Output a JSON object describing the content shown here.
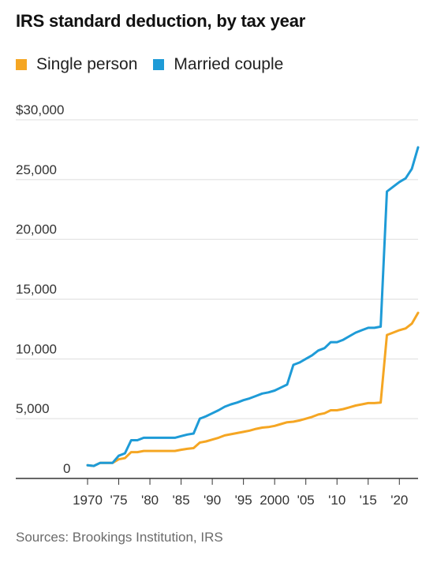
{
  "title": "IRS standard deduction, by tax year",
  "source": "Sources: Brookings Institution, IRS",
  "colors": {
    "single": "#f5a623",
    "married": "#1e9bd7",
    "grid": "#dddddd",
    "axis": "#333333"
  },
  "legend": [
    {
      "label": "Single person",
      "color": "#f5a623"
    },
    {
      "label": "Married couple",
      "color": "#1e9bd7"
    }
  ],
  "chart_data": {
    "type": "line",
    "title": "IRS standard deduction, by tax year",
    "xlabel": "",
    "ylabel": "",
    "xlim": [
      1970,
      2023
    ],
    "ylim": [
      0,
      30000
    ],
    "grid": true,
    "legend_position": "top-left",
    "x_ticks": [
      1970,
      1975,
      1980,
      1985,
      1990,
      1995,
      2000,
      2005,
      2010,
      2015,
      2020
    ],
    "x_tick_labels": [
      "1970",
      "'75",
      "'80",
      "'85",
      "'90",
      "'95",
      "2000",
      "'05",
      "'10",
      "'15",
      "'20"
    ],
    "y_ticks": [
      0,
      5000,
      10000,
      15000,
      20000,
      25000,
      30000
    ],
    "y_tick_labels": [
      "0",
      "5,000",
      "10,000",
      "15,000",
      "20,000",
      "25,000",
      "$30,000"
    ],
    "series": [
      {
        "name": "Single person",
        "color": "#f5a623",
        "x": [
          1970,
          1971,
          1972,
          1973,
          1974,
          1975,
          1976,
          1977,
          1978,
          1979,
          1980,
          1981,
          1982,
          1983,
          1984,
          1985,
          1986,
          1987,
          1988,
          1989,
          1990,
          1991,
          1992,
          1993,
          1994,
          1995,
          1996,
          1997,
          1998,
          1999,
          2000,
          2001,
          2002,
          2003,
          2004,
          2005,
          2006,
          2007,
          2008,
          2009,
          2010,
          2011,
          2012,
          2013,
          2014,
          2015,
          2016,
          2017,
          2018,
          2019,
          2020,
          2021,
          2022,
          2023
        ],
        "values": [
          1100,
          1050,
          1300,
          1300,
          1300,
          1600,
          1700,
          2200,
          2200,
          2300,
          2300,
          2300,
          2300,
          2300,
          2300,
          2400,
          2480,
          2540,
          3000,
          3100,
          3250,
          3400,
          3600,
          3700,
          3800,
          3900,
          4000,
          4150,
          4250,
          4300,
          4400,
          4550,
          4700,
          4750,
          4850,
          5000,
          5150,
          5350,
          5450,
          5700,
          5700,
          5800,
          5950,
          6100,
          6200,
          6300,
          6300,
          6350,
          12000,
          12200,
          12400,
          12550,
          12950,
          13850
        ]
      },
      {
        "name": "Married couple",
        "color": "#1e9bd7",
        "x": [
          1970,
          1971,
          1972,
          1973,
          1974,
          1975,
          1976,
          1977,
          1978,
          1979,
          1980,
          1981,
          1982,
          1983,
          1984,
          1985,
          1986,
          1987,
          1988,
          1989,
          1990,
          1991,
          1992,
          1993,
          1994,
          1995,
          1996,
          1997,
          1998,
          1999,
          2000,
          2001,
          2002,
          2003,
          2004,
          2005,
          2006,
          2007,
          2008,
          2009,
          2010,
          2011,
          2012,
          2013,
          2014,
          2015,
          2016,
          2017,
          2018,
          2019,
          2020,
          2021,
          2022,
          2023
        ],
        "values": [
          1100,
          1050,
          1300,
          1300,
          1300,
          1900,
          2100,
          3200,
          3200,
          3400,
          3400,
          3400,
          3400,
          3400,
          3400,
          3540,
          3670,
          3760,
          5000,
          5200,
          5450,
          5700,
          6000,
          6200,
          6350,
          6550,
          6700,
          6900,
          7100,
          7200,
          7350,
          7600,
          7850,
          9500,
          9700,
          10000,
          10300,
          10700,
          10900,
          11400,
          11400,
          11600,
          11900,
          12200,
          12400,
          12600,
          12600,
          12700,
          24000,
          24400,
          24800,
          25100,
          25900,
          27700
        ]
      }
    ]
  }
}
